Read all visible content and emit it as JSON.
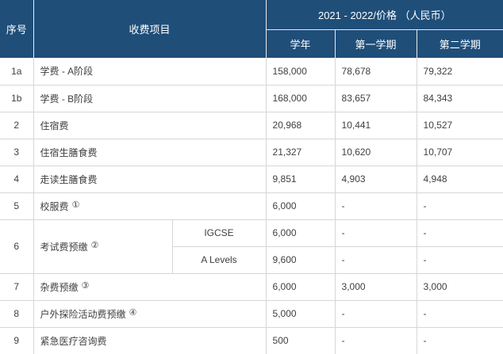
{
  "colors": {
    "header_bg": "#1F4E79",
    "header_text": "#FFFFFF",
    "header_border": "#EDEAE6",
    "body_border": "#D6D6D6",
    "body_text": "#404040",
    "body_bg": "#FFFFFF"
  },
  "table": {
    "header": {
      "no": "序号",
      "item": "收费项目",
      "price_group": "2021 - 2022/价格 （人民币）",
      "year": "学年",
      "sem1": "第一学期",
      "sem2": "第二学期"
    },
    "rows": [
      {
        "no": "1a",
        "item": "学费 - A阶段",
        "sup": "",
        "year": "158,000",
        "sem1": "78,678",
        "sem2": "79,322"
      },
      {
        "no": "1b",
        "item": "学费 - B阶段",
        "sup": "",
        "year": "168,000",
        "sem1": "83,657",
        "sem2": "84,343"
      },
      {
        "no": "2",
        "item": "住宿费",
        "sup": "",
        "year": "20,968",
        "sem1": "10,441",
        "sem2": "10,527"
      },
      {
        "no": "3",
        "item": "住宿生膳食费",
        "sup": "",
        "year": "21,327",
        "sem1": "10,620",
        "sem2": "10,707"
      },
      {
        "no": "4",
        "item": "走读生膳食费",
        "sup": "",
        "year": "9,851",
        "sem1": "4,903",
        "sem2": "4,948"
      },
      {
        "no": "5",
        "item": "校服费",
        "sup": "①",
        "year": "6,000",
        "sem1": "-",
        "sem2": "-"
      },
      {
        "no": "6",
        "item": "考试费预缴",
        "sup": "②",
        "subrows": [
          {
            "sub": "IGCSE",
            "year": "6,000",
            "sem1": "-",
            "sem2": "-"
          },
          {
            "sub": "A Levels",
            "year": "9,600",
            "sem1": "-",
            "sem2": "-"
          }
        ]
      },
      {
        "no": "7",
        "item": "杂费预缴",
        "sup": "③",
        "year": "6,000",
        "sem1": "3,000",
        "sem2": "3,000"
      },
      {
        "no": "8",
        "item": "户外探险活动费预缴",
        "sup": "④",
        "year": "5,000",
        "sem1": "-",
        "sem2": "-"
      },
      {
        "no": "9",
        "item": "紧急医疗咨询费",
        "sup": "",
        "year": "500",
        "sem1": "-",
        "sem2": "-"
      }
    ]
  }
}
